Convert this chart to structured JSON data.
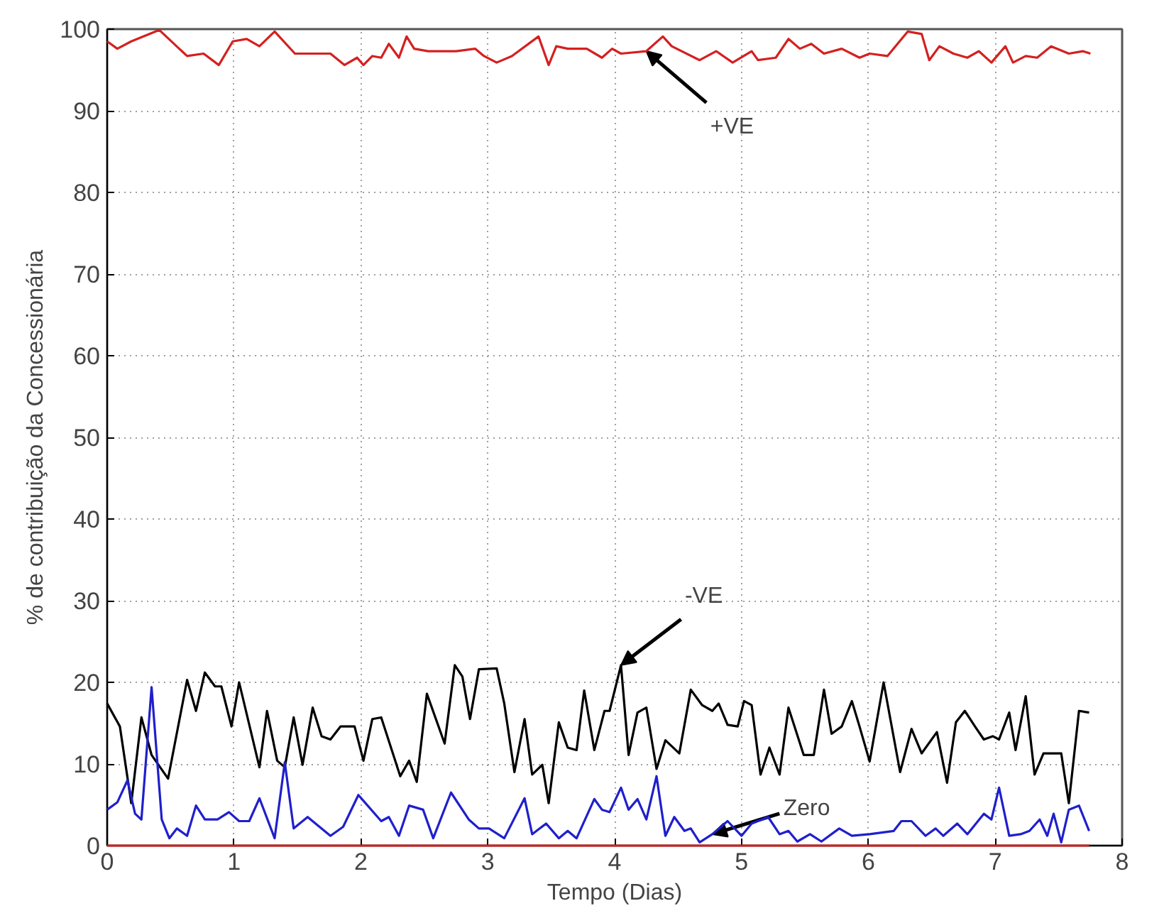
{
  "chart_data": {
    "type": "line",
    "xlabel": "Tempo (Dias)",
    "ylabel": "% de contribuição da Concessionária",
    "xlim": [
      0,
      8
    ],
    "ylim": [
      0,
      100
    ],
    "xticks": [
      0,
      1,
      2,
      3,
      4,
      5,
      6,
      7,
      8
    ],
    "yticks": [
      0,
      10,
      20,
      30,
      40,
      50,
      60,
      70,
      80,
      90,
      100
    ],
    "grid": true,
    "marker": "none",
    "line_style": "solid",
    "series": [
      {
        "color": "#d42020",
        "x": [
          0,
          0.08,
          0.19,
          0.41,
          0.63,
          0.76,
          0.88,
          0.99,
          1.1,
          1.2,
          1.32,
          1.48,
          1.76,
          1.87,
          1.97,
          2.02,
          2.09,
          2.16,
          2.22,
          2.3,
          2.36,
          2.42,
          2.53,
          2.75,
          2.9,
          2.97,
          3.07,
          3.19,
          3.4,
          3.48,
          3.54,
          3.63,
          3.78,
          3.9,
          3.98,
          4.05,
          4.25,
          4.38,
          4.45,
          4.67,
          4.8,
          4.93,
          5.08,
          5.13,
          5.27,
          5.37,
          5.46,
          5.55,
          5.65,
          5.79,
          5.93,
          6.01,
          6.15,
          6.31,
          6.42,
          6.48,
          6.56,
          6.67,
          6.78,
          6.87,
          6.97,
          7.08,
          7.14,
          7.24,
          7.33,
          7.44,
          7.58,
          7.69,
          7.75
        ],
        "values": [
          98.5,
          97.6,
          98.5,
          99.9,
          96.7,
          97.0,
          95.6,
          98.5,
          98.8,
          97.9,
          99.7,
          97.0,
          97.0,
          95.6,
          96.5,
          95.6,
          96.7,
          96.5,
          98.2,
          96.5,
          99.1,
          97.6,
          97.3,
          97.3,
          97.6,
          96.7,
          95.9,
          96.7,
          99.1,
          95.6,
          97.9,
          97.6,
          97.6,
          96.5,
          97.6,
          97.0,
          97.3,
          99.1,
          97.9,
          96.2,
          97.3,
          95.9,
          97.3,
          96.2,
          96.5,
          98.8,
          97.6,
          98.2,
          97.0,
          97.6,
          96.5,
          97.0,
          96.7,
          99.7,
          99.4,
          96.2,
          97.9,
          97.0,
          96.5,
          97.3,
          95.9,
          97.9,
          95.9,
          96.7,
          96.5,
          97.9,
          97.0,
          97.3,
          97.0
        ]
      },
      {
        "color": "#000000",
        "x": [
          0,
          0.1,
          0.19,
          0.27,
          0.35,
          0.48,
          0.63,
          0.7,
          0.77,
          0.85,
          0.9,
          0.98,
          1.04,
          1.2,
          1.26,
          1.34,
          1.4,
          1.47,
          1.54,
          1.62,
          1.69,
          1.76,
          1.84,
          1.95,
          2.02,
          2.09,
          2.16,
          2.31,
          2.38,
          2.44,
          2.52,
          2.66,
          2.74,
          2.8,
          2.86,
          2.93,
          3.07,
          3.13,
          3.21,
          3.29,
          3.35,
          3.43,
          3.48,
          3.56,
          3.63,
          3.7,
          3.76,
          3.84,
          3.92,
          3.96,
          4.05,
          4.11,
          4.18,
          4.25,
          4.33,
          4.4,
          4.51,
          4.6,
          4.69,
          4.77,
          4.82,
          4.89,
          4.97,
          5.02,
          5.08,
          5.15,
          5.22,
          5.3,
          5.37,
          5.49,
          5.57,
          5.65,
          5.71,
          5.79,
          5.87,
          5.93,
          6.01,
          6.12,
          6.25,
          6.34,
          6.42,
          6.54,
          6.62,
          6.69,
          6.76,
          6.84,
          6.91,
          6.98,
          7.03,
          7.11,
          7.16,
          7.24,
          7.31,
          7.38,
          7.52,
          7.58,
          7.66,
          7.74
        ],
        "values": [
          17.4,
          14.6,
          5.2,
          15.7,
          11.1,
          8.2,
          20.3,
          16.5,
          21.2,
          19.5,
          19.5,
          14.6,
          20,
          9.6,
          16.5,
          10.4,
          9.6,
          15.7,
          9.9,
          16.9,
          13.4,
          13,
          14.6,
          14.6,
          10.4,
          15.5,
          15.7,
          8.5,
          10.4,
          7.8,
          18.6,
          12.5,
          22.1,
          20.7,
          15.5,
          21.6,
          21.7,
          17.4,
          9,
          15.5,
          8.7,
          9.9,
          5.2,
          15.1,
          12,
          11.7,
          19,
          11.7,
          16.5,
          16.5,
          22.1,
          11.1,
          16.3,
          16.9,
          9.4,
          12.9,
          11.3,
          19.1,
          17.2,
          16.5,
          17.4,
          14.8,
          14.6,
          17.7,
          17.2,
          8.7,
          12,
          8.7,
          16.9,
          11.1,
          11.1,
          19.1,
          13.7,
          14.6,
          17.7,
          14.6,
          10.3,
          20,
          9,
          14.3,
          11.3,
          13.9,
          7.7,
          15.1,
          16.5,
          14.6,
          13,
          13.4,
          13,
          16.3,
          11.7,
          18.3,
          8.7,
          11.3,
          11.3,
          5.2,
          16.5,
          16.3
        ]
      },
      {
        "color": "#1f1fcc",
        "x": [
          0,
          0.08,
          0.16,
          0.22,
          0.27,
          0.35,
          0.43,
          0.49,
          0.55,
          0.63,
          0.7,
          0.77,
          0.87,
          0.96,
          1.04,
          1.12,
          1.2,
          1.32,
          1.4,
          1.47,
          1.58,
          1.76,
          1.86,
          1.98,
          2.16,
          2.22,
          2.3,
          2.38,
          2.49,
          2.57,
          2.71,
          2.85,
          2.93,
          3.01,
          3.13,
          3.29,
          3.35,
          3.46,
          3.56,
          3.63,
          3.7,
          3.84,
          3.9,
          3.96,
          4.05,
          4.11,
          4.18,
          4.25,
          4.33,
          4.4,
          4.47,
          4.55,
          4.6,
          4.67,
          4.77,
          4.89,
          5.0,
          5.08,
          5.21,
          5.3,
          5.37,
          5.44,
          5.54,
          5.63,
          5.77,
          5.87,
          6.01,
          6.2,
          6.26,
          6.34,
          6.45,
          6.53,
          6.59,
          6.7,
          6.78,
          6.91,
          6.97,
          7.03,
          7.11,
          7.2,
          7.27,
          7.35,
          7.41,
          7.46,
          7.52,
          7.58,
          7.66,
          7.74
        ],
        "values": [
          4.4,
          5.3,
          8,
          3.9,
          3.2,
          19.4,
          3.2,
          0.9,
          2.1,
          1.2,
          4.9,
          3.2,
          3.2,
          4.1,
          3,
          3,
          5.8,
          0.9,
          10.2,
          2.1,
          3.5,
          1.2,
          2.3,
          6.2,
          3,
          3.5,
          1.2,
          4.9,
          4.4,
          0.9,
          6.5,
          3.2,
          2.1,
          2.1,
          0.9,
          5.8,
          1.4,
          2.7,
          0.9,
          1.8,
          0.9,
          5.7,
          4.4,
          4.1,
          7.1,
          4.4,
          5.7,
          3.2,
          8.5,
          1.2,
          3.5,
          1.8,
          2.1,
          0.4,
          1.4,
          3,
          1.2,
          2.7,
          3.5,
          1.4,
          1.8,
          0.5,
          1.4,
          0.5,
          2.1,
          1.2,
          1.4,
          1.8,
          3,
          3,
          1.2,
          2.1,
          1.2,
          2.7,
          1.4,
          3.9,
          3.2,
          7.1,
          1.2,
          1.4,
          1.8,
          3.2,
          1.2,
          3.9,
          0.4,
          4.4,
          4.9,
          1.8
        ]
      },
      {
        "color": "#d42020",
        "x": [
          0,
          7.74
        ],
        "values": [
          0,
          0
        ]
      }
    ],
    "annotations": [
      {
        "text": "+VE",
        "x": 4.25,
        "y": 97.3
      },
      {
        "text": "-VE",
        "x": 4.05,
        "y": 22.1
      },
      {
        "text": "Zero",
        "x": 4.77,
        "y": 1.4
      }
    ]
  }
}
